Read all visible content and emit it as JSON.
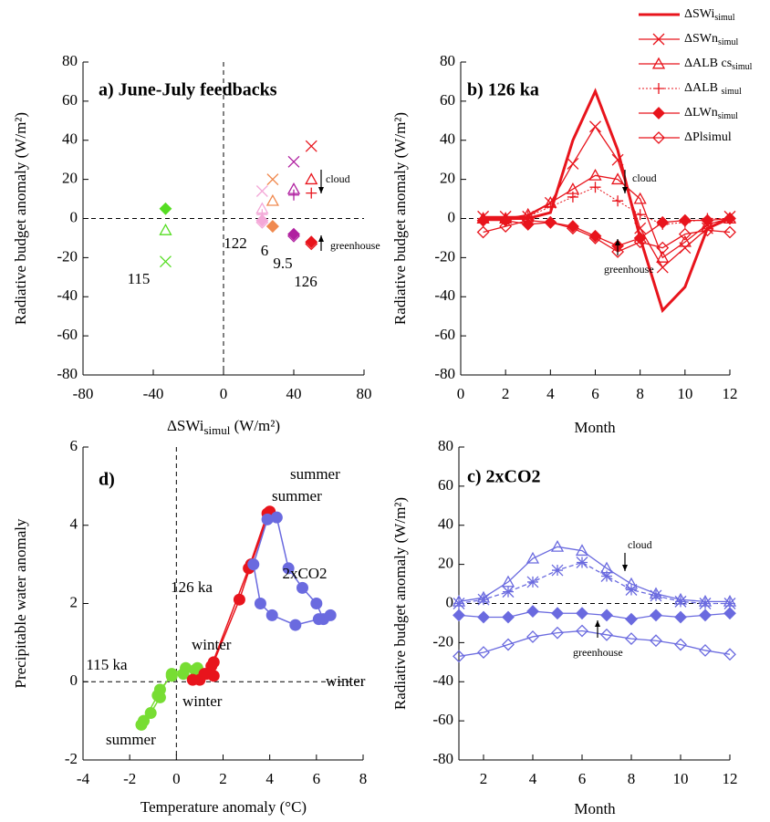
{
  "chart_data": [
    {
      "type": "scatter",
      "title": "a)  June-July feedbacks",
      "xlabel": [
        "ΔSWi",
        "simul",
        " (W/m²)"
      ],
      "ylabel": "Radiative budget anomaly (W/m²)",
      "xlim": [
        -80,
        80
      ],
      "ylim": [
        -80,
        80
      ],
      "xticks": [
        -80,
        -40,
        0,
        40,
        80
      ],
      "yticks": [
        -80,
        -60,
        -40,
        -20,
        0,
        20,
        40,
        60,
        80
      ],
      "zero_lines": [
        "x",
        "y"
      ],
      "markers": [
        "x",
        "triangle",
        "plus",
        "diamond-filled",
        "diamond-open"
      ],
      "series": [
        {
          "name": "115",
          "color": "#55dd22",
          "x": -33,
          "values": [
            -22,
            -6,
            null,
            5,
            null
          ]
        },
        {
          "name": "122",
          "color": "#f4a8d8",
          "x": 22,
          "values": [
            14,
            5,
            2,
            -1,
            -2
          ]
        },
        {
          "name": "6",
          "color": "#f08a50",
          "x": 28,
          "values": [
            20,
            9,
            null,
            -4,
            -4
          ]
        },
        {
          "name": "9.5",
          "color": "#b020a0",
          "x": 40,
          "values": [
            29,
            15,
            12,
            -8,
            -9
          ]
        },
        {
          "name": "126",
          "color": "#e8141c",
          "x": 50,
          "values": [
            37,
            20,
            13,
            -12,
            -13
          ]
        }
      ],
      "annotations": [
        "cloud",
        "greenhouse"
      ]
    },
    {
      "type": "line",
      "title": "b)  126 ka",
      "xlabel": "Month",
      "ylabel": "Radiative budget anomaly (W/m²)",
      "x": [
        1,
        2,
        3,
        4,
        5,
        6,
        7,
        8,
        9,
        10,
        11,
        12
      ],
      "xlim": [
        0,
        12
      ],
      "ylim": [
        -80,
        80
      ],
      "xticks": [
        0,
        2,
        4,
        6,
        8,
        10,
        12
      ],
      "yticks": [
        -80,
        -60,
        -40,
        -20,
        0,
        20,
        40,
        60,
        80
      ],
      "zero_lines": [
        "y"
      ],
      "series": [
        {
          "name": "ΔSWi",
          "sub": "simul",
          "color": "#e8141c",
          "width": 3,
          "marker": null,
          "dash": null,
          "values": [
            0,
            0,
            0,
            3,
            40,
            65,
            35,
            -10,
            -47,
            -35,
            -5,
            0
          ]
        },
        {
          "name": "ΔSWn",
          "sub": "simul",
          "color": "#e8141c",
          "width": 1.3,
          "marker": "x",
          "dash": null,
          "values": [
            1,
            1,
            1,
            8,
            28,
            47,
            30,
            -5,
            -25,
            -15,
            -5,
            1
          ]
        },
        {
          "name": "ΔALB cs",
          "sub": "simul",
          "color": "#e8141c",
          "width": 1.3,
          "marker": "triangle",
          "dash": null,
          "values": [
            0,
            0,
            2,
            8,
            15,
            22,
            20,
            10,
            -20,
            -12,
            -3,
            0
          ]
        },
        {
          "name": "ΔALB ",
          "sub": "simul",
          "color": "#e8141c",
          "width": 1,
          "marker": "plus",
          "dash": "2,2",
          "values": [
            0,
            0,
            1,
            6,
            11,
            16,
            9,
            2,
            -3,
            -2,
            0,
            0
          ]
        },
        {
          "name": "ΔLWn",
          "sub": "simul",
          "color": "#e8141c",
          "width": 1.3,
          "marker": "diamond-filled",
          "dash": null,
          "values": [
            -1,
            -1,
            -3,
            -2,
            -4,
            -9,
            -14,
            -10,
            -2,
            -1,
            -1,
            0
          ]
        },
        {
          "name": "ΔPlsimul",
          "color": "#e8141c",
          "width": 1.3,
          "marker": "diamond-open",
          "dash": null,
          "values": [
            -7,
            -4,
            -1,
            -2,
            -5,
            -10,
            -17,
            -12,
            -15,
            -8,
            -6,
            -7
          ]
        }
      ],
      "annotations": [
        "cloud",
        "greenhouse"
      ]
    },
    {
      "type": "line",
      "title": "c)  2xCO2",
      "xlabel": "Month",
      "ylabel": "Radiative budget anomaly (W/m²)",
      "x": [
        1,
        2,
        3,
        4,
        5,
        6,
        7,
        8,
        9,
        10,
        11,
        12
      ],
      "xlim": [
        1,
        12
      ],
      "ylim": [
        -80,
        80
      ],
      "xticks": [
        2,
        4,
        6,
        8,
        10,
        12
      ],
      "yticks": [
        -80,
        -60,
        -40,
        -20,
        0,
        20,
        40,
        60,
        80
      ],
      "zero_lines": [
        "y"
      ],
      "series": [
        {
          "color": "#6a6adf",
          "width": 1.3,
          "marker": "triangle",
          "dash": null,
          "values": [
            1,
            3,
            11,
            23,
            29,
            27,
            18,
            10,
            5,
            2,
            1,
            1
          ]
        },
        {
          "color": "#6a6adf",
          "width": 1.3,
          "marker": "asterisk",
          "dash": "5,3",
          "values": [
            0,
            2,
            6,
            11,
            17,
            21,
            14,
            7,
            4,
            1,
            0,
            0
          ]
        },
        {
          "color": "#6a6adf",
          "width": 1.3,
          "marker": "diamond-filled",
          "dash": null,
          "values": [
            -6,
            -7,
            -7,
            -4,
            -5,
            -5,
            -6,
            -8,
            -6,
            -7,
            -6,
            -5
          ]
        },
        {
          "color": "#6a6adf",
          "width": 1.3,
          "marker": "diamond-open",
          "dash": null,
          "values": [
            -27,
            -25,
            -21,
            -17,
            -15,
            -14,
            -16,
            -18,
            -19,
            -21,
            -24,
            -26
          ]
        }
      ],
      "annotations": [
        "cloud",
        "greenhouse"
      ]
    },
    {
      "type": "line",
      "title": "d)",
      "xlabel": "Temperature anomaly (°C)",
      "ylabel": "Precipitable water anomaly",
      "xlim": [
        -4,
        8
      ],
      "ylim": [
        -2,
        6
      ],
      "xticks": [
        -4,
        -2,
        0,
        2,
        4,
        6,
        8
      ],
      "yticks": [
        -2,
        0,
        2,
        4,
        6
      ],
      "zero_lines": [
        "x",
        "y"
      ],
      "series": [
        {
          "name": "115 ka",
          "color": "#77dd33",
          "width": 1.5,
          "marker": "circle",
          "dash": null,
          "x": [
            -1.5,
            -1.1,
            -0.7,
            -0.7,
            -0.2,
            0.3,
            0.8,
            0.9,
            0.4,
            -0.2,
            -0.8,
            -1.4
          ],
          "values": [
            -1.1,
            -0.8,
            -0.4,
            -0.2,
            0.15,
            0.2,
            0.3,
            0.35,
            0.35,
            0.2,
            -0.35,
            -1.0
          ]
        },
        {
          "name": "126 ka",
          "color": "#e8141c",
          "width": 1.5,
          "marker": "circle",
          "dash": null,
          "x": [
            1.0,
            1.6,
            1.6,
            2.7,
            3.2,
            4.0,
            3.9,
            3.1,
            1.5,
            1.3,
            1.2,
            0.7
          ],
          "values": [
            0.05,
            0.15,
            0.5,
            2.1,
            3.0,
            4.35,
            4.3,
            2.9,
            0.4,
            0.2,
            0.2,
            0.05
          ]
        },
        {
          "name": "2xCO2",
          "color": "#6a6adf",
          "width": 1.5,
          "marker": "circle",
          "dash": null,
          "x": [
            6.6,
            6.3,
            6.0,
            5.4,
            4.8,
            4.3,
            3.9,
            3.3,
            3.6,
            4.1,
            5.1,
            6.1
          ],
          "values": [
            1.7,
            1.6,
            2.0,
            2.4,
            2.9,
            4.2,
            4.15,
            3.0,
            2.0,
            1.7,
            1.45,
            1.6
          ]
        }
      ],
      "annotations": [
        {
          "text": "summer",
          "color": "#6a6adf"
        },
        {
          "text": "summer",
          "color": "#e8141c"
        },
        {
          "text": "winter",
          "color": "#6a6adf"
        },
        {
          "text": "winter",
          "color": "#55dd22"
        },
        {
          "text": "winter",
          "color": "#e8141c"
        },
        {
          "text": "summer",
          "color": "#55dd22"
        }
      ]
    }
  ]
}
